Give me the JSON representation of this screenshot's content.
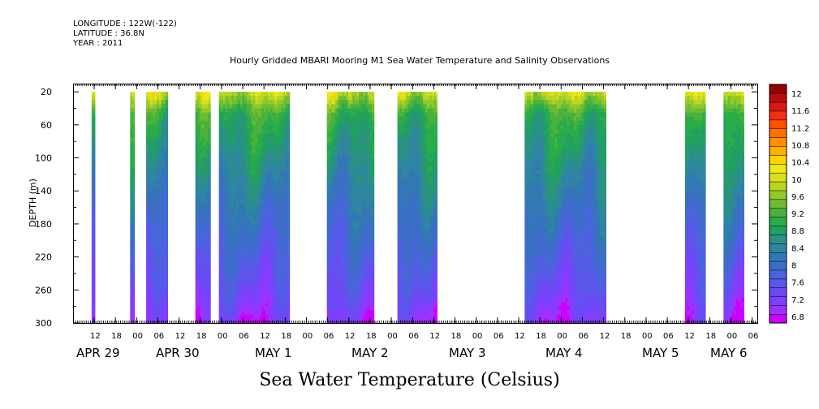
{
  "header": {
    "longitude": "LONGITUDE : 122W(-122)",
    "latitude": "LATITUDE : 36.8N",
    "year": "YEAR : 2011"
  },
  "chart_data": {
    "type": "heatmap",
    "title": "Hourly Gridded MBARI Mooring M1 Sea Water Temperature and Salinity Observations",
    "xlabel": "",
    "ylabel": "DEPTH (m)",
    "footer_label": "Sea Water Temperature (Celsius)",
    "x_hour_ticks": [
      "12",
      "18",
      "00",
      "06",
      "12",
      "18",
      "00",
      "06",
      "12",
      "18",
      "00",
      "06",
      "12",
      "18",
      "00",
      "06",
      "12",
      "18",
      "00",
      "06",
      "12",
      "18",
      "00",
      "06",
      "12",
      "18",
      "00",
      "06",
      "12",
      "18",
      "00",
      "06"
    ],
    "date_labels": [
      "APR 29",
      "APR 30",
      "MAY 1",
      "MAY 2",
      "MAY 3",
      "MAY 4",
      "MAY 5",
      "MAY 6"
    ],
    "ylim": [
      300,
      10
    ],
    "y_ticks": [
      20,
      60,
      100,
      140,
      180,
      220,
      260,
      300
    ],
    "colorbar": {
      "levels": [
        6.8,
        7.0,
        7.2,
        7.4,
        7.6,
        7.8,
        8.0,
        8.2,
        8.4,
        8.6,
        8.8,
        9.0,
        9.2,
        9.4,
        9.6,
        9.8,
        10.0,
        10.2,
        10.4,
        10.6,
        10.8,
        11.0,
        11.2,
        11.4,
        11.6,
        11.8,
        12.0,
        12.2
      ],
      "labels": [
        "12",
        "11.6",
        "11.2",
        "10.8",
        "10.4",
        "10",
        "9.6",
        "9.2",
        "8.8",
        "8.4",
        "8",
        "7.6",
        "7.2",
        "6.8"
      ],
      "colors": [
        "#cc00ff",
        "#9a33ff",
        "#7f3fff",
        "#6a4af2",
        "#5858ea",
        "#4a64dc",
        "#3c6ec8",
        "#3378b4",
        "#2e86a0",
        "#2a9280",
        "#22a060",
        "#2aac48",
        "#4ab23c",
        "#6cbc34",
        "#92c92a",
        "#b8d622",
        "#dadf1a",
        "#f0e814",
        "#ffd400",
        "#ffb000",
        "#ff9000",
        "#ff7000",
        "#ff5000",
        "#f03010",
        "#d81818",
        "#b80c0c",
        "#960000"
      ]
    },
    "data_windows_hours": [
      [
        17,
        20
      ],
      [
        53,
        57
      ],
      [
        68,
        88
      ],
      [
        114,
        128
      ],
      [
        136,
        202
      ],
      [
        237,
        281
      ],
      [
        303,
        340
      ],
      [
        422,
        498
      ],
      [
        572,
        591
      ],
      [
        608,
        627
      ]
    ],
    "profile_at_depths": {
      "depths": [
        20,
        60,
        100,
        140,
        180,
        220,
        260,
        300
      ],
      "temperature_c": [
        9.4,
        9.0,
        8.7,
        8.4,
        8.1,
        7.8,
        7.5,
        7.1
      ]
    }
  }
}
